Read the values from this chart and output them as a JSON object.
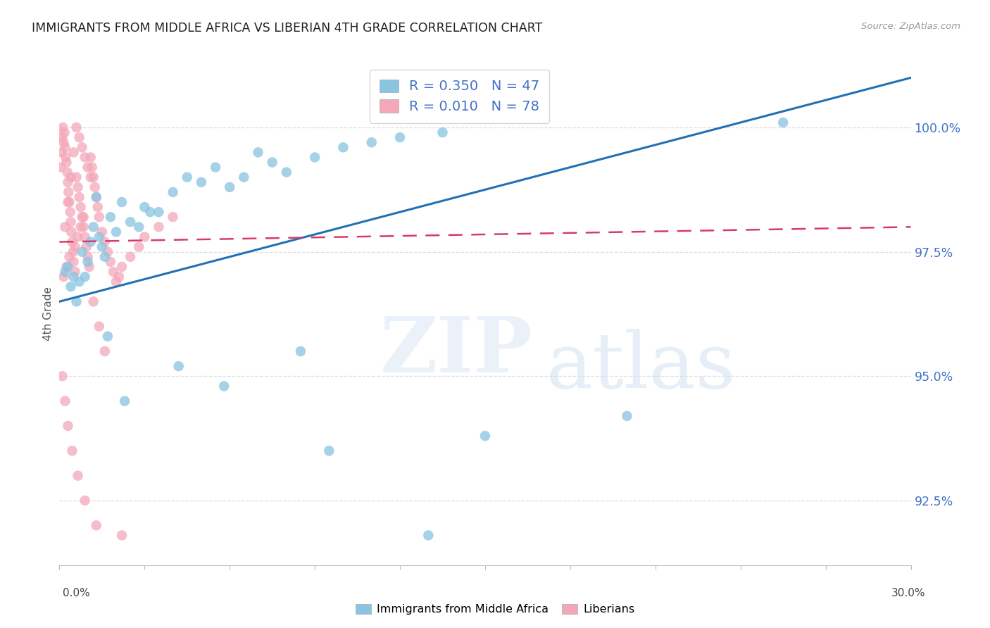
{
  "title": "IMMIGRANTS FROM MIDDLE AFRICA VS LIBERIAN 4TH GRADE CORRELATION CHART",
  "source": "Source: ZipAtlas.com",
  "ylabel": "4th Grade",
  "color_blue": "#89c4e1",
  "color_pink": "#f4a7b9",
  "trendline_blue_color": "#2171b5",
  "trendline_pink_color": "#d63b6a",
  "xlim": [
    0.0,
    30.0
  ],
  "ylim": [
    91.2,
    101.3
  ],
  "yticks": [
    92.5,
    95.0,
    97.5,
    100.0
  ],
  "legend_blue_R": "R = 0.350",
  "legend_blue_N": "N = 47",
  "legend_pink_R": "R = 0.010",
  "legend_pink_N": "N = 78",
  "blue_x": [
    0.3,
    0.5,
    0.8,
    1.0,
    1.2,
    1.4,
    1.5,
    1.6,
    1.8,
    2.0,
    2.2,
    2.5,
    3.0,
    3.5,
    4.0,
    4.5,
    5.0,
    5.5,
    6.0,
    7.0,
    7.5,
    8.0,
    9.0,
    10.0,
    11.0,
    12.0,
    13.5,
    15.0,
    20.0,
    25.5,
    0.2,
    0.4,
    0.6,
    0.9,
    1.1,
    1.3,
    2.8,
    3.2,
    6.5,
    8.5,
    0.7,
    1.7,
    2.3,
    4.2,
    5.8,
    9.5,
    13.0
  ],
  "blue_y": [
    97.2,
    97.0,
    97.5,
    97.3,
    98.0,
    97.8,
    97.6,
    97.4,
    98.2,
    97.9,
    98.5,
    98.1,
    98.4,
    98.3,
    98.7,
    99.0,
    98.9,
    99.2,
    98.8,
    99.5,
    99.3,
    99.1,
    99.4,
    99.6,
    99.7,
    99.8,
    99.9,
    93.8,
    94.2,
    100.1,
    97.1,
    96.8,
    96.5,
    97.0,
    97.7,
    98.6,
    98.0,
    98.3,
    99.0,
    95.5,
    96.9,
    95.8,
    94.5,
    95.2,
    94.8,
    93.5,
    91.8
  ],
  "pink_x": [
    0.05,
    0.08,
    0.1,
    0.12,
    0.15,
    0.18,
    0.2,
    0.22,
    0.25,
    0.28,
    0.3,
    0.32,
    0.35,
    0.38,
    0.4,
    0.42,
    0.45,
    0.48,
    0.5,
    0.55,
    0.6,
    0.65,
    0.7,
    0.75,
    0.8,
    0.85,
    0.9,
    0.95,
    1.0,
    1.05,
    1.1,
    1.15,
    1.2,
    1.25,
    1.3,
    1.35,
    1.4,
    1.5,
    1.6,
    1.7,
    1.8,
    1.9,
    2.0,
    2.1,
    2.2,
    2.5,
    2.8,
    3.0,
    3.5,
    4.0,
    0.2,
    0.3,
    0.4,
    0.5,
    0.6,
    0.7,
    0.8,
    0.9,
    1.0,
    1.1,
    0.15,
    0.25,
    0.35,
    0.55,
    0.65,
    0.75,
    0.85,
    1.2,
    1.4,
    1.6,
    0.1,
    0.2,
    0.3,
    0.45,
    0.65,
    0.9,
    1.3,
    2.2
  ],
  "pink_y": [
    99.2,
    99.5,
    99.8,
    100.0,
    99.7,
    99.9,
    99.6,
    99.4,
    99.3,
    99.1,
    98.9,
    98.7,
    98.5,
    98.3,
    98.1,
    97.9,
    97.7,
    97.5,
    97.3,
    97.1,
    99.0,
    98.8,
    98.6,
    98.4,
    98.2,
    98.0,
    97.8,
    97.6,
    97.4,
    97.2,
    99.4,
    99.2,
    99.0,
    98.8,
    98.6,
    98.4,
    98.2,
    97.9,
    97.7,
    97.5,
    97.3,
    97.1,
    96.9,
    97.0,
    97.2,
    97.4,
    97.6,
    97.8,
    98.0,
    98.2,
    98.0,
    98.5,
    99.0,
    99.5,
    100.0,
    99.8,
    99.6,
    99.4,
    99.2,
    99.0,
    97.0,
    97.2,
    97.4,
    97.6,
    97.8,
    98.0,
    98.2,
    96.5,
    96.0,
    95.5,
    95.0,
    94.5,
    94.0,
    93.5,
    93.0,
    92.5,
    92.0,
    91.8
  ],
  "blue_trend_x": [
    0.0,
    30.0
  ],
  "blue_trend_y": [
    96.5,
    101.0
  ],
  "pink_trend_x": [
    0.0,
    30.0
  ],
  "pink_trend_y": [
    97.7,
    98.0
  ]
}
